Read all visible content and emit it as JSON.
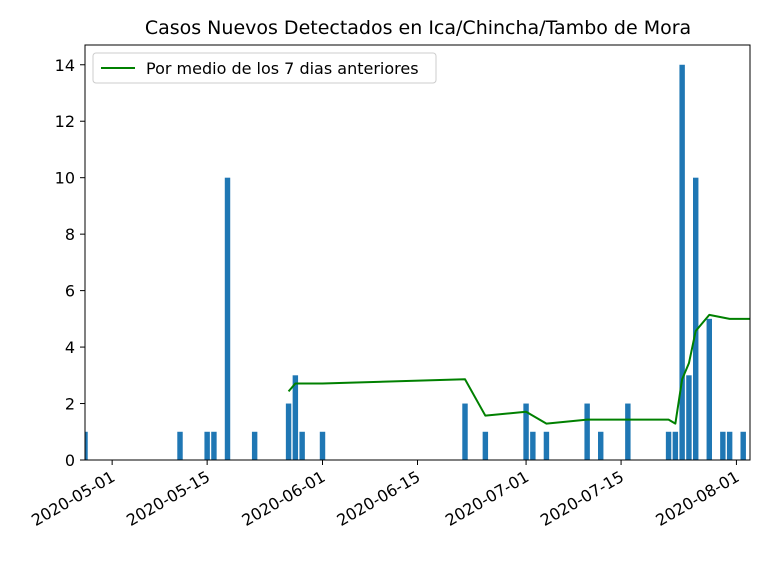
{
  "chart_data": {
    "type": "bar",
    "title": "Casos Nuevos Detectados en Ica/Chincha/Tambo de Mora",
    "xlabel": "",
    "ylabel": "",
    "x_type": "date",
    "xlim": [
      "2020-04-27",
      "2020-08-03"
    ],
    "ylim": [
      0,
      14.7
    ],
    "yticks": [
      0,
      2,
      4,
      6,
      8,
      10,
      12,
      14
    ],
    "xticks": [
      "2020-05-01",
      "2020-05-15",
      "2020-06-01",
      "2020-06-15",
      "2020-07-01",
      "2020-07-15",
      "2020-08-01"
    ],
    "grid": false,
    "legend_position": "top-left",
    "series": [
      {
        "type": "bar",
        "color": "#1f77b4",
        "x": [
          "2020-04-27",
          "2020-05-11",
          "2020-05-15",
          "2020-05-16",
          "2020-05-18",
          "2020-05-22",
          "2020-05-27",
          "2020-05-28",
          "2020-05-29",
          "2020-06-01",
          "2020-06-22",
          "2020-06-25",
          "2020-07-01",
          "2020-07-02",
          "2020-07-04",
          "2020-07-10",
          "2020-07-12",
          "2020-07-16",
          "2020-07-22",
          "2020-07-23",
          "2020-07-24",
          "2020-07-25",
          "2020-07-26",
          "2020-07-28",
          "2020-07-30",
          "2020-07-31",
          "2020-08-02"
        ],
        "values": [
          1,
          1,
          1,
          1,
          10,
          1,
          2,
          3,
          1,
          1,
          2,
          1,
          2,
          1,
          1,
          2,
          1,
          2,
          1,
          1,
          14,
          3,
          10,
          5,
          1,
          1,
          1
        ]
      },
      {
        "type": "line",
        "name": "Por medio de los 7 dias anteriores",
        "color": "#008000",
        "x": [
          "2020-05-27",
          "2020-05-28",
          "2020-06-01",
          "2020-06-22",
          "2020-06-25",
          "2020-07-01",
          "2020-07-04",
          "2020-07-10",
          "2020-07-12",
          "2020-07-16",
          "2020-07-22",
          "2020-07-23",
          "2020-07-24",
          "2020-07-25",
          "2020-07-26",
          "2020-07-28",
          "2020-07-31",
          "2020-08-03"
        ],
        "values": [
          2.43,
          2.71,
          2.71,
          2.86,
          1.57,
          1.71,
          1.29,
          1.43,
          1.43,
          1.43,
          1.43,
          1.29,
          2.86,
          3.43,
          4.57,
          5.14,
          5.0,
          5.0
        ]
      }
    ]
  }
}
